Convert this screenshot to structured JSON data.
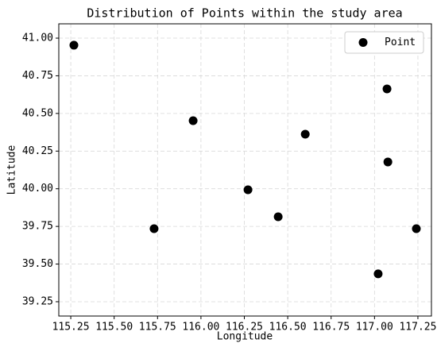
{
  "chart_data": {
    "type": "scatter",
    "title": "Distribution of Points within the study area",
    "x_label": "Longitude",
    "y_label": "Latitude",
    "series": [
      {
        "name": "Point",
        "color": "#000000",
        "x": [
          115.268,
          115.955,
          115.73,
          116.271,
          116.445,
          116.601,
          117.072,
          117.077,
          117.241,
          117.021
        ],
        "values": [
          40.953,
          40.452,
          39.735,
          39.993,
          39.814,
          40.362,
          40.663,
          40.178,
          39.735,
          39.435
        ]
      }
    ],
    "xlim": [
      115.181,
      117.328
    ],
    "ylim": [
      39.155,
      41.095
    ],
    "xticks": [
      115.25,
      {
        "value": 115.5,
        "label": "115.50"
      },
      115.75,
      {
        "value": 116,
        "label": "116.00"
      },
      116.25,
      {
        "value": 116.5,
        "label": "116.50"
      },
      116.75,
      {
        "value": 117,
        "label": "117.00"
      },
      117.25
    ],
    "yticks": [
      39.25,
      {
        "value": 39.5,
        "label": "39.50"
      },
      39.75,
      {
        "value": 40,
        "label": "40.00"
      },
      40.25,
      {
        "value": 40.5,
        "label": "40.50"
      },
      40.75,
      {
        "value": 41,
        "label": "41.00"
      }
    ],
    "grid": true,
    "legend": "upper right"
  }
}
